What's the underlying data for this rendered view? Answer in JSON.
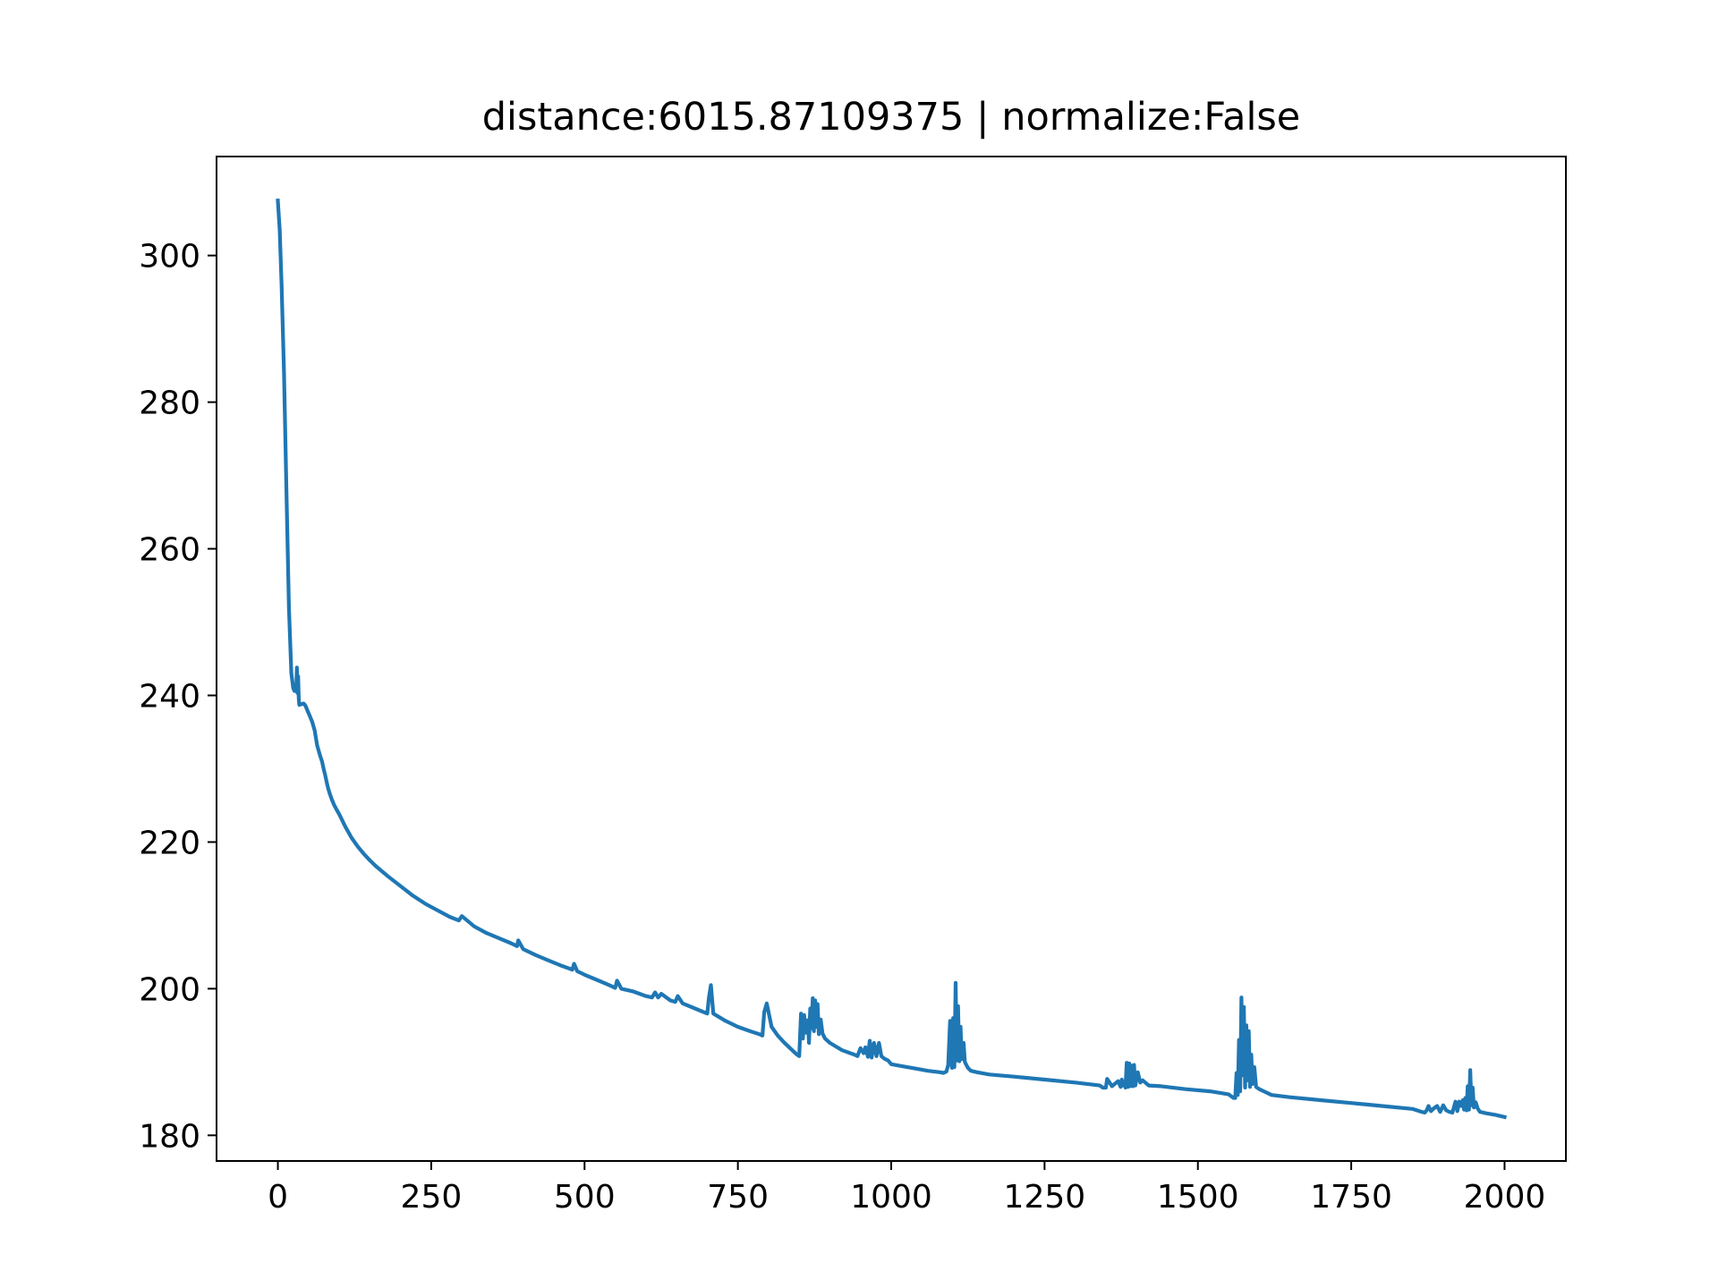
{
  "chart_data": {
    "type": "line",
    "title": "distance:6015.87109375 | normalize:False",
    "xlabel": "",
    "ylabel": "",
    "xlim": [
      -100,
      2100
    ],
    "ylim": [
      176.5,
      313.5
    ],
    "xticks": [
      0,
      250,
      500,
      750,
      1000,
      1250,
      1500,
      1750,
      2000
    ],
    "yticks": [
      180,
      200,
      220,
      240,
      260,
      280,
      300
    ],
    "xtick_labels": [
      "0",
      "250",
      "500",
      "750",
      "1000",
      "1250",
      "1500",
      "1750",
      "2000"
    ],
    "ytick_labels": [
      "180",
      "200",
      "220",
      "240",
      "260",
      "280",
      "300"
    ],
    "grid": false,
    "series": [
      {
        "color": "#1f77b4",
        "x": [
          0,
          3,
          6,
          10,
          14,
          18,
          22,
          25,
          26,
          27,
          28,
          29,
          30,
          31,
          32,
          33,
          34,
          35,
          38,
          42,
          45,
          48,
          52,
          56,
          60,
          64,
          68,
          72,
          75,
          77,
          80,
          82,
          85,
          88,
          92,
          96,
          100,
          110,
          120,
          130,
          140,
          150,
          160,
          180,
          200,
          220,
          240,
          260,
          280,
          295,
          300,
          320,
          340,
          360,
          380,
          390,
          392,
          400,
          420,
          440,
          460,
          480,
          483,
          488,
          500,
          520,
          540,
          550,
          553,
          560,
          580,
          600,
          610,
          615,
          620,
          625,
          640,
          648,
          652,
          660,
          680,
          700,
          703,
          706,
          710,
          730,
          750,
          770,
          785,
          790,
          793,
          797,
          805,
          815,
          825,
          835,
          845,
          850,
          853,
          856,
          858,
          861,
          864,
          866,
          868,
          870,
          872,
          874,
          876,
          878,
          880,
          882,
          885,
          888,
          892,
          900,
          920,
          940,
          945,
          950,
          955,
          958,
          962,
          965,
          968,
          972,
          976,
          980,
          984,
          988,
          995,
          1000,
          1020,
          1040,
          1060,
          1080,
          1085,
          1090,
          1093,
          1096,
          1099,
          1101,
          1103,
          1105,
          1107,
          1109,
          1111,
          1113,
          1115,
          1118,
          1120,
          1125,
          1130,
          1140,
          1160,
          1200,
          1250,
          1300,
          1340,
          1345,
          1350,
          1352,
          1360,
          1370,
          1374,
          1376,
          1378,
          1380,
          1382,
          1384,
          1386,
          1388,
          1390,
          1392,
          1394,
          1396,
          1398,
          1402,
          1406,
          1410,
          1420,
          1440,
          1480,
          1520,
          1550,
          1555,
          1558,
          1561,
          1563,
          1565,
          1567,
          1569,
          1571,
          1573,
          1575,
          1577,
          1579,
          1581,
          1583,
          1585,
          1587,
          1589,
          1592,
          1595,
          1600,
          1610,
          1620,
          1650,
          1700,
          1750,
          1800,
          1850,
          1865,
          1870,
          1873,
          1876,
          1880,
          1885,
          1890,
          1895,
          1900,
          1905,
          1910,
          1915,
          1920,
          1923,
          1926,
          1929,
          1932,
          1934,
          1936,
          1938,
          1940,
          1942,
          1944,
          1946,
          1948,
          1950,
          1953,
          1956,
          1960,
          1970,
          1985,
          2000
        ],
        "y": [
          307.5,
          303.5,
          296,
          284,
          268,
          252,
          243,
          241,
          240.8,
          240.6,
          240.9,
          241.2,
          241.0,
          243.8,
          240.3,
          242.6,
          239.5,
          238.7,
          238.8,
          238.9,
          238.6,
          238.0,
          237.2,
          236.4,
          235.2,
          233.2,
          232.0,
          231.0,
          229.8,
          229.2,
          228.0,
          227.3,
          226.5,
          225.8,
          225.0,
          224.4,
          223.8,
          222.1,
          220.6,
          219.4,
          218.4,
          217.5,
          216.7,
          215.3,
          214.0,
          212.7,
          211.6,
          210.7,
          209.8,
          209.3,
          209.9,
          208.5,
          207.6,
          206.9,
          206.2,
          205.8,
          206.6,
          205.4,
          204.6,
          203.9,
          203.2,
          202.6,
          203.4,
          202.4,
          201.9,
          201.2,
          200.5,
          200.1,
          201.1,
          200.0,
          199.6,
          199.0,
          198.8,
          199.5,
          198.8,
          199.3,
          198.4,
          198.2,
          199.0,
          198.0,
          197.3,
          196.6,
          198.9,
          200.5,
          196.6,
          195.6,
          194.8,
          194.2,
          193.8,
          193.6,
          196.8,
          198.0,
          194.8,
          193.6,
          192.7,
          191.9,
          191.1,
          190.8,
          196.6,
          193.2,
          196.4,
          194.0,
          195.7,
          192.6,
          197.3,
          194.6,
          198.7,
          194.2,
          198.4,
          194.8,
          197.9,
          193.8,
          195.8,
          193.9,
          193.2,
          192.6,
          191.6,
          191.0,
          190.8,
          191.9,
          191.2,
          192.0,
          190.7,
          192.9,
          190.6,
          192.6,
          190.8,
          192.6,
          190.8,
          190.5,
          190.2,
          189.7,
          189.4,
          189.1,
          188.8,
          188.6,
          188.5,
          188.7,
          189.6,
          195.6,
          189.2,
          196.0,
          189.3,
          200.8,
          190.2,
          197.6,
          190.1,
          194.8,
          190.4,
          192.6,
          190.0,
          189.2,
          188.8,
          188.6,
          188.3,
          188.0,
          187.6,
          187.2,
          186.8,
          186.5,
          186.5,
          187.7,
          186.7,
          187.4,
          186.6,
          187.6,
          186.8,
          187.3,
          186.5,
          189.9,
          186.6,
          189.8,
          186.7,
          189.5,
          186.7,
          189.6,
          186.8,
          188.6,
          187.2,
          187.5,
          186.8,
          186.7,
          186.3,
          186.0,
          185.6,
          185.3,
          185.1,
          185.1,
          188.5,
          185.5,
          193.0,
          186.0,
          198.8,
          188.2,
          197.5,
          186.5,
          195.0,
          187.5,
          194.2,
          186.6,
          191.0,
          187.0,
          189.3,
          186.6,
          186.3,
          185.9,
          185.5,
          185.2,
          184.8,
          184.4,
          184.0,
          183.6,
          183.2,
          183.1,
          183.4,
          184.0,
          183.3,
          183.7,
          184.0,
          183.2,
          184.1,
          183.4,
          183.2,
          183.1,
          184.6,
          183.3,
          184.6,
          184.0,
          184.8,
          183.5,
          185.1,
          183.4,
          186.7,
          183.5,
          188.9,
          184.1,
          186.5,
          183.8,
          184.5,
          183.7,
          183.2,
          183.0,
          182.8,
          182.5
        ]
      }
    ]
  }
}
